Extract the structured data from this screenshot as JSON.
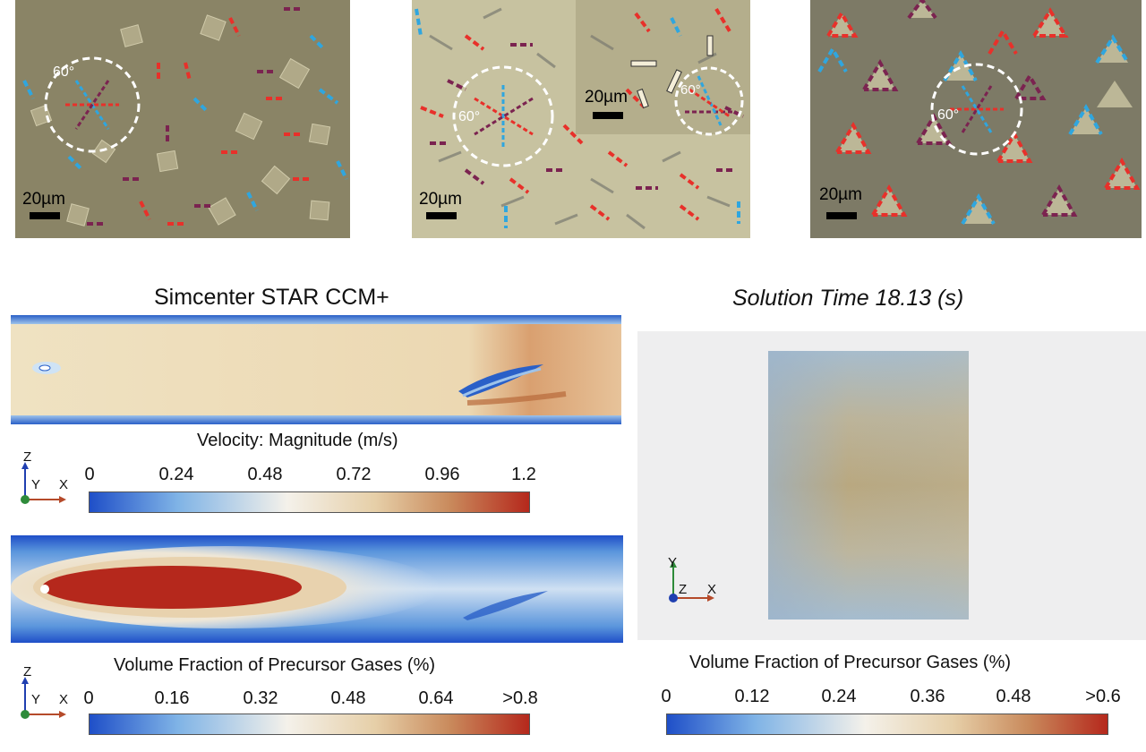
{
  "micrographs": [
    {
      "scale_label": "20µm",
      "angle_label": "60°"
    },
    {
      "scale_label": "20µm",
      "angle_label": "60°",
      "inset_scale_label": "20µm",
      "inset_angle_label": "60°"
    },
    {
      "scale_label": "20µm",
      "angle_label": "60°"
    }
  ],
  "left_panel": {
    "title": "Simcenter STAR CCM+",
    "velocity": {
      "title": "Velocity: Magnitude (m/s)",
      "ticks": [
        "0",
        "0.24",
        "0.48",
        "0.72",
        "0.96",
        "1.2"
      ]
    },
    "volume_fraction": {
      "title": "Volume Fraction of Precursor Gases (%)",
      "ticks": [
        "0",
        "0.16",
        "0.32",
        "0.48",
        "0.64",
        ">0.8"
      ]
    },
    "axes_labels": {
      "z": "Z",
      "y": "Y",
      "x": "X"
    }
  },
  "right_panel": {
    "title": "Solution Time 18.13 (s)",
    "volume_fraction": {
      "title": "Volume Fraction of Precursor Gases (%)",
      "ticks": [
        "0",
        "0.12",
        "0.24",
        "0.36",
        "0.48",
        ">0.6"
      ]
    },
    "axes_labels": {
      "y": "Y",
      "z": "Z",
      "x": "X"
    }
  },
  "colors": {
    "colormap_low": "#1f4fc8",
    "colormap_mid": "#f4f1ea",
    "colormap_high": "#b5281c",
    "micro_olive": "#8a8466",
    "micro_khaki": "#c7c2a0",
    "marker_red": "#e8302a",
    "marker_blue": "#2fa6df",
    "marker_maroon": "#7b2350"
  }
}
